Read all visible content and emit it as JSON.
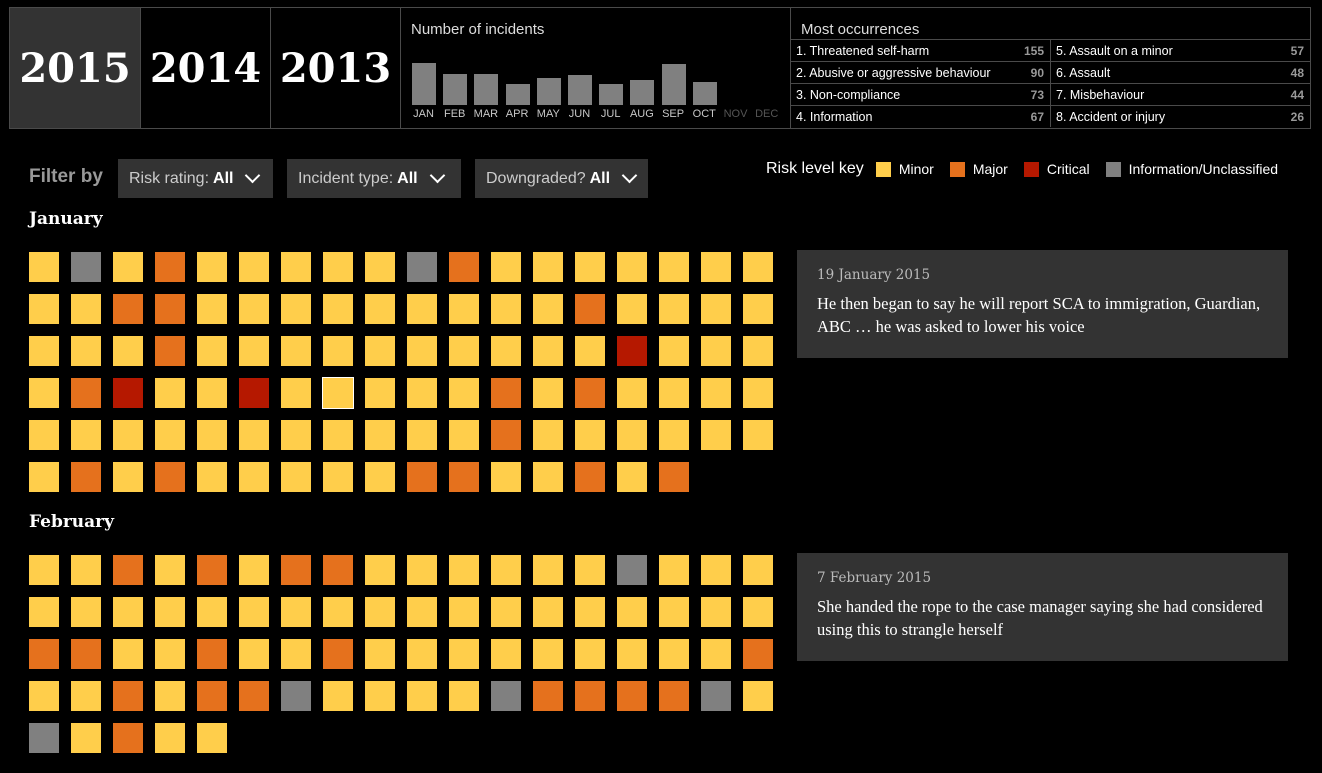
{
  "years": [
    {
      "label": "2015",
      "active": true
    },
    {
      "label": "2014",
      "active": false
    },
    {
      "label": "2013",
      "active": false
    }
  ],
  "incidents": {
    "title": "Number of incidents",
    "months": [
      {
        "label": "JAN",
        "value": 42,
        "available": true
      },
      {
        "label": "FEB",
        "value": 31,
        "available": true
      },
      {
        "label": "MAR",
        "value": 31,
        "available": true
      },
      {
        "label": "APR",
        "value": 21,
        "available": true
      },
      {
        "label": "MAY",
        "value": 27,
        "available": true
      },
      {
        "label": "JUN",
        "value": 30,
        "available": true
      },
      {
        "label": "JUL",
        "value": 21,
        "available": true
      },
      {
        "label": "AUG",
        "value": 25,
        "available": true
      },
      {
        "label": "SEP",
        "value": 41,
        "available": true
      },
      {
        "label": "OCT",
        "value": 23,
        "available": true
      },
      {
        "label": "NOV",
        "value": 0,
        "available": false
      },
      {
        "label": "DEC",
        "value": 0,
        "available": false
      }
    ]
  },
  "occurrences": {
    "title": "Most occurrences",
    "items": [
      {
        "label": "1. Threatened self-harm",
        "count": "155"
      },
      {
        "label": "5. Assault on a minor",
        "count": "57"
      },
      {
        "label": "2. Abusive or aggressive behaviour",
        "count": "90"
      },
      {
        "label": "6. Assault",
        "count": "48"
      },
      {
        "label": "3. Non-compliance",
        "count": "73"
      },
      {
        "label": "7. Misbehaviour",
        "count": "44"
      },
      {
        "label": "4. Information",
        "count": "67"
      },
      {
        "label": "8. Accident or injury",
        "count": "26"
      }
    ]
  },
  "filters": {
    "label": "Filter by",
    "risk": {
      "name": "Risk rating:",
      "value": "All"
    },
    "type": {
      "name": "Incident type:",
      "value": "All"
    },
    "downgraded": {
      "name": "Downgraded?",
      "value": "All"
    }
  },
  "key": {
    "title": "Risk level key",
    "items": [
      {
        "label": "Minor",
        "color": "#ffce4b"
      },
      {
        "label": "Major",
        "color": "#e5711d"
      },
      {
        "label": "Critical",
        "color": "#b51800"
      },
      {
        "label": "Information/Unclassified",
        "color": "#808080"
      }
    ]
  },
  "months": [
    {
      "title": "January",
      "rows": [
        "yiyoyyyyyioyyyyyyy",
        "yyooyyyyyyyyyoyyyy",
        "yyyoyyyyyyyyyycyyy",
        "yocyycyyyyyoyoyyyy",
        "yyyyyyyyyyyoyyyyyy",
        "yoyoyyyyyooyyoyo"
      ],
      "selected": [
        3,
        7
      ],
      "quote": {
        "date": "19 January 2015",
        "text": "He then began to say he will report SCA to immigration, Guardian, ABC … he was asked to lower his voice"
      }
    },
    {
      "title": "February",
      "rows": [
        "yyoyoyooyyyyyyiyyy",
        "yyyyyyyyyyyyyyyyyy",
        "ooyyoyyoyyyyyyyyyo",
        "yyoyooiyyyyiooooiy",
        "iyoyy"
      ],
      "selected": null,
      "quote": {
        "date": "7 February 2015",
        "text": "She handed the rope to the case manager saying she had considered using this to strangle herself"
      }
    }
  ]
}
